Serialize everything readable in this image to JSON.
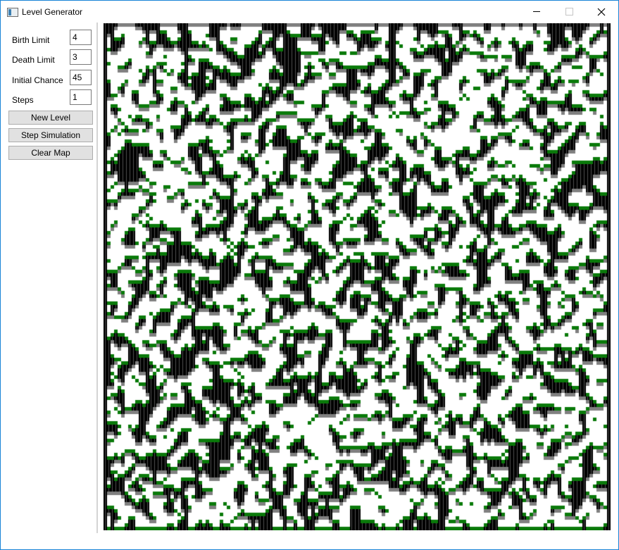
{
  "window": {
    "title": "Level Generator",
    "icon": "app-window-icon"
  },
  "titlebar_buttons": {
    "minimize_icon": "minimize-icon",
    "maximize_icon": "maximize-icon",
    "close_icon": "close-icon"
  },
  "settings": {
    "birth_limit": {
      "label": "Birth Limit",
      "value": "4"
    },
    "death_limit": {
      "label": "Death Limit",
      "value": "3"
    },
    "initial_chance": {
      "label": "Initial Chance",
      "value": "45"
    },
    "steps": {
      "label": "Steps",
      "value": "1"
    }
  },
  "actions": {
    "new_level": "New Level",
    "step_simulation": "Step Simulation",
    "clear_map": "Clear Map"
  },
  "map": {
    "colors": {
      "floor": "#ffffff",
      "wall": "#000000",
      "wall_stripe": "#505050",
      "wall_edge": "#808080",
      "grass": "#0a7a0a"
    }
  }
}
